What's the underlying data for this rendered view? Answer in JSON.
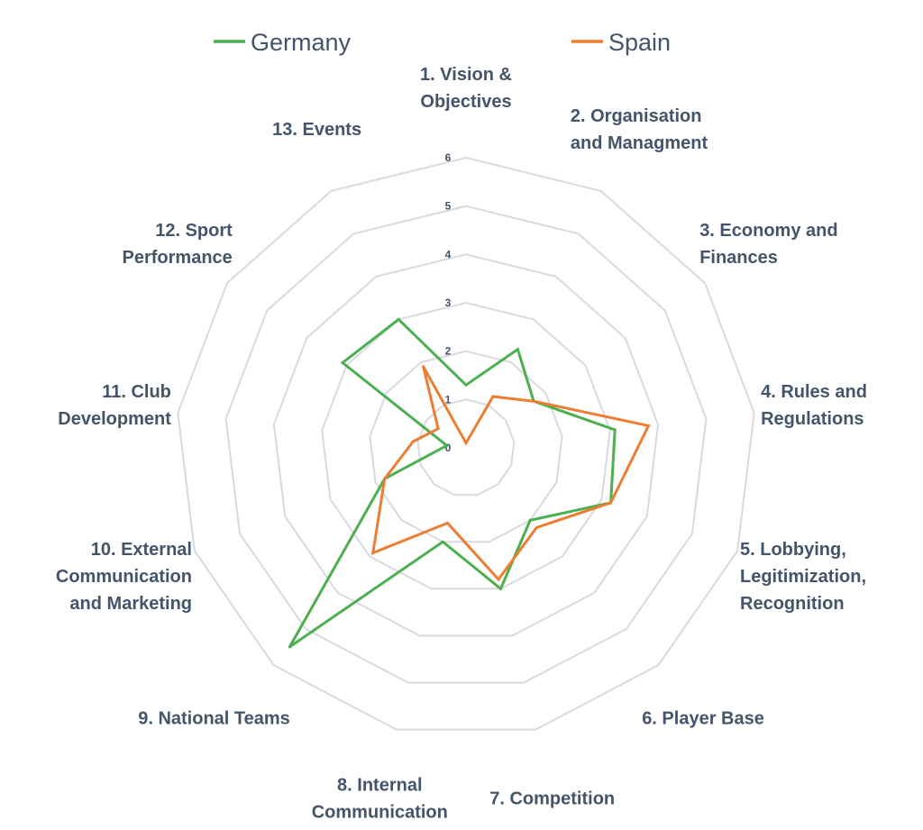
{
  "chart_data": {
    "type": "radar",
    "categories": [
      "1. Vision & Objectives",
      "2. Organisation and Managment",
      "3. Economy and Finances",
      "4. Rules and Regulations",
      "5. Lobbying, Legitimization, Recognition",
      "6. Player Base",
      "7. Competition",
      "8. Internal Communication",
      "9. National Teams",
      "10. External Communication and Marketing",
      "11. Club Development",
      "12. Sport Performance",
      "13. Events"
    ],
    "category_lines": [
      [
        "1. Vision &",
        "Objectives"
      ],
      [
        "2. Organisation",
        "and Managment"
      ],
      [
        "3. Economy and",
        "Finances"
      ],
      [
        "4. Rules and",
        "Regulations"
      ],
      [
        "5. Lobbying,",
        "Legitimization,",
        "Recognition"
      ],
      [
        "6. Player Base"
      ],
      [
        "7. Competition"
      ],
      [
        "8. Internal",
        "Communication"
      ],
      [
        "9. National Teams"
      ],
      [
        "10. External",
        "Communication",
        "and Marketing"
      ],
      [
        "11. Club",
        "Development"
      ],
      [
        "12. Sport",
        "Performance"
      ],
      [
        "13. Events"
      ]
    ],
    "series": [
      {
        "name": "Germany",
        "color": "#4caf50",
        "values": [
          1.3,
          2.3,
          1.7,
          3.1,
          3.2,
          2.0,
          3.0,
          2.0,
          5.5,
          1.8,
          0.4,
          3.1,
          3.0
        ]
      },
      {
        "name": "Spain",
        "color": "#ed7d31",
        "values": [
          0.1,
          1.2,
          1.7,
          3.8,
          3.2,
          2.2,
          2.8,
          1.6,
          2.9,
          1.8,
          1.1,
          0.7,
          1.9
        ]
      }
    ],
    "r_ticks": [
      "0",
      "1",
      "2",
      "3",
      "4",
      "5",
      "6"
    ],
    "r_range": [
      0,
      6
    ],
    "grid": true,
    "grid_color": "#d9d9df",
    "legend_position": "top"
  }
}
